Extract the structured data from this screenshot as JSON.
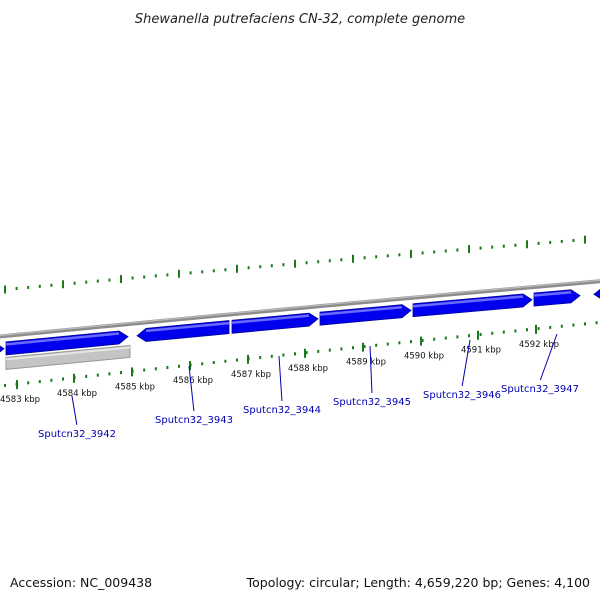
{
  "title": "Shewanella putrefaciens CN-32, complete genome",
  "footer": {
    "accession": "Accession: NC_009438",
    "summary": "Topology: circular; Length: 4,659,220 bp; Genes: 4,100"
  },
  "colors": {
    "gene_fill": "#0000ee",
    "gene_highlight": "#6a6aff",
    "backbone": "#8c8c8c",
    "tick": "#1a7a1a",
    "label": "#0000b0",
    "feature_gray": "#c4c4c4"
  },
  "scale_labels": [
    "4583 kbp",
    "4584 kbp",
    "4585 kbp",
    "4586 kbp",
    "4587 kbp",
    "4588 kbp",
    "4589 kbp",
    "4590 kbp",
    "4591 kbp",
    "4592 kbp"
  ],
  "genes": [
    {
      "label": "Sputcn32_3942",
      "strand": "+"
    },
    {
      "label": "Sputcn32_3943",
      "strand": "-"
    },
    {
      "label": "Sputcn32_3944",
      "strand": "+"
    },
    {
      "label": "Sputcn32_3945",
      "strand": "+"
    },
    {
      "label": "Sputcn32_3946",
      "strand": "+"
    },
    {
      "label": "Sputcn32_3947",
      "strand": "+"
    }
  ]
}
